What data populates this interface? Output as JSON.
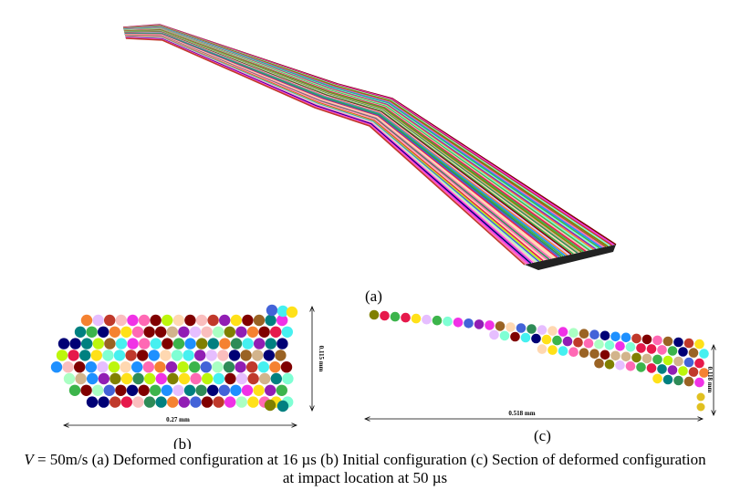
{
  "figure": {
    "panels": [
      {
        "label": "(a)"
      },
      {
        "label": "(b)",
        "width_label": "0.27 mm",
        "height_label": "0.115 mm"
      },
      {
        "label": "(c)",
        "width_label": "0.518 mm",
        "height_label": "0.118 mm"
      }
    ],
    "caption": {
      "variable": "V",
      "text": "= 50m/s (a) Deformed configuration at 16 µs (b) Initial configuration (c) Section of deformed configuration at impact location at 50 µs"
    }
  }
}
